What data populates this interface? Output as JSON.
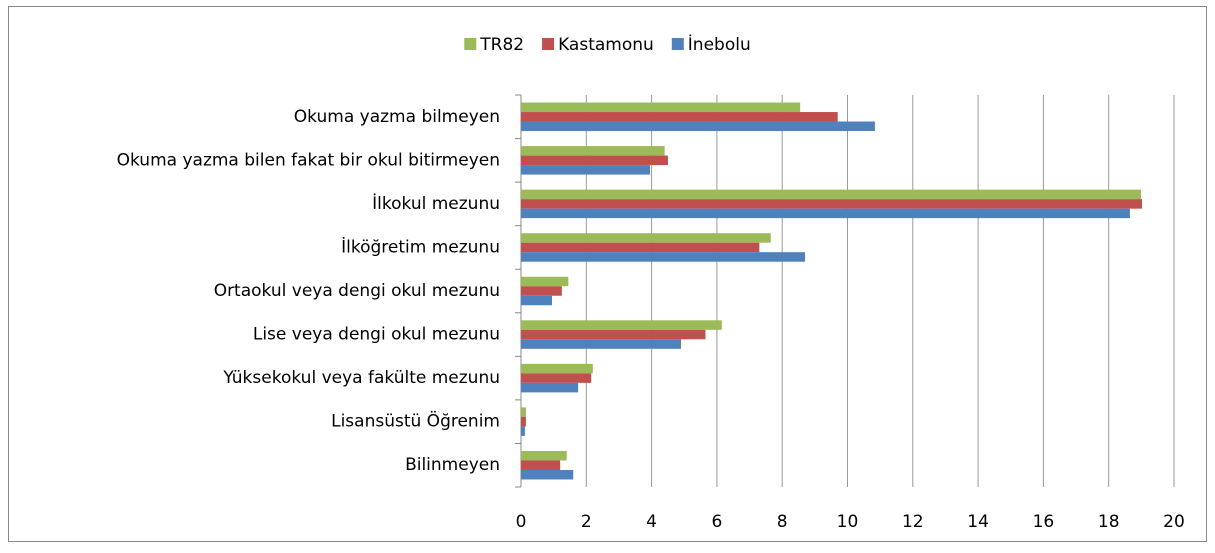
{
  "chart_data": {
    "type": "barh",
    "categories": [
      "Okuma yazma bilmeyen",
      "Okuma yazma bilen fakat bir okul bitirmeyen",
      "İlkokul mezunu",
      "İlköğretim mezunu",
      "Ortaokul veya dengi okul mezunu",
      "Lise veya dengi okul mezunu",
      "Yüksekokul veya fakülte mezunu",
      "Lisansüstü Öğrenim",
      "Bilinmeyen"
    ],
    "series": [
      {
        "name": "TR82",
        "color": "#9bbb59",
        "values": [
          8.55,
          4.4,
          18.99,
          7.65,
          1.45,
          6.15,
          2.2,
          0.15,
          1.4
        ]
      },
      {
        "name": "Kastamonu",
        "color": "#c0504d",
        "values": [
          9.7,
          4.5,
          19.02,
          7.3,
          1.25,
          5.65,
          2.15,
          0.15,
          1.2
        ]
      },
      {
        "name": "İnebolu",
        "color": "#4f81bd",
        "values": [
          10.84,
          3.95,
          18.65,
          8.7,
          0.95,
          4.9,
          1.75,
          0.12,
          1.6
        ]
      }
    ],
    "xlim": [
      0,
      20
    ],
    "xticks": [
      0,
      2,
      4,
      6,
      8,
      10,
      12,
      14,
      16,
      18,
      20
    ],
    "grid": true
  }
}
